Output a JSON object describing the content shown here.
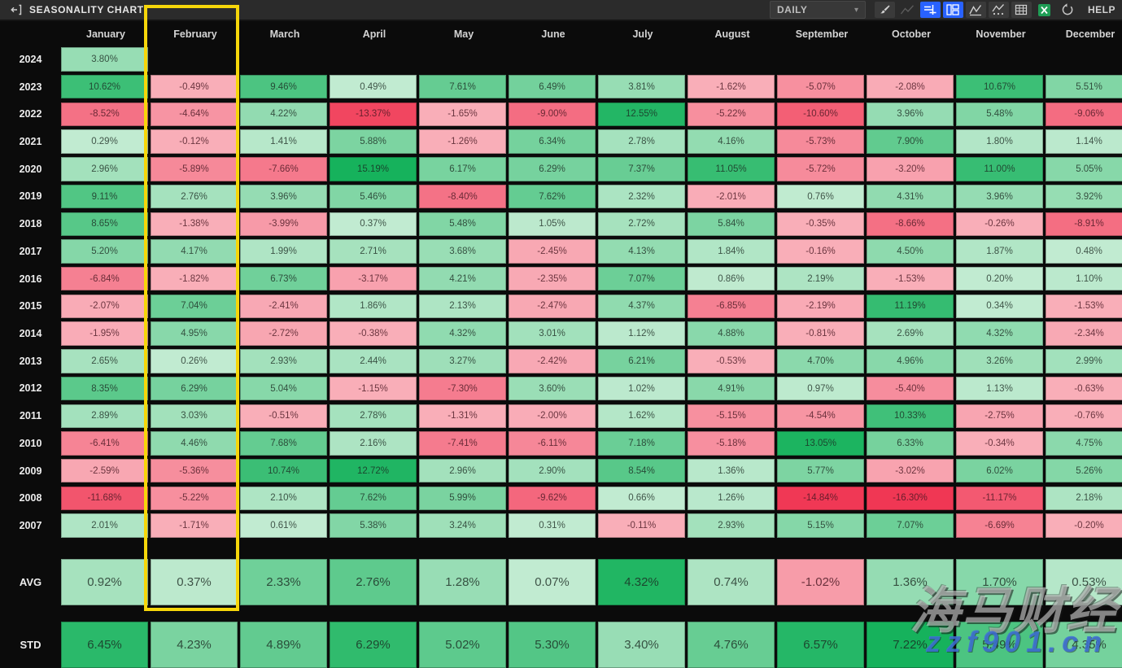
{
  "topbar": {
    "title": "SEASONALITY CHART",
    "timeframe_selected": "DAILY",
    "help_label": "HELP",
    "icons": [
      "collapse-panel",
      "chevron-down",
      "brush",
      "trend-line",
      "price-scale",
      "grid-layout",
      "line-chart",
      "performance-chart",
      "table",
      "excel-export",
      "reset"
    ]
  },
  "highlight": {
    "column": "February",
    "color": "#f6d60a"
  },
  "colors": {
    "green_low": "#caeed7",
    "green_high": "#16b25c",
    "red_low": "#fabec6",
    "red_high": "#f03754",
    "accent_blue": "#2962ff",
    "excel_green": "#1f9d55",
    "topbar_bg": "#2b2b2b",
    "page_bg": "#0b0b0b"
  },
  "watermark": {
    "line1": "海马财经",
    "line2": "zzf901.cn"
  },
  "chart_data": {
    "type": "heatmap",
    "title": "SEASONALITY CHART",
    "unit": "%",
    "columns": [
      "January",
      "February",
      "March",
      "April",
      "May",
      "June",
      "July",
      "August",
      "September",
      "October",
      "November",
      "December"
    ],
    "rows": [
      {
        "label": "2024",
        "values": [
          3.8,
          null,
          null,
          null,
          null,
          null,
          null,
          null,
          null,
          null,
          null,
          null
        ]
      },
      {
        "label": "2023",
        "values": [
          10.62,
          -0.49,
          9.46,
          0.49,
          7.61,
          6.49,
          3.81,
          -1.62,
          -5.07,
          -2.08,
          10.67,
          5.51
        ]
      },
      {
        "label": "2022",
        "values": [
          -8.52,
          -4.64,
          4.22,
          -13.37,
          -1.65,
          -9.0,
          12.55,
          -5.22,
          -10.6,
          3.96,
          5.48,
          -9.06
        ]
      },
      {
        "label": "2021",
        "values": [
          0.29,
          -0.12,
          1.41,
          5.88,
          -1.26,
          6.34,
          2.78,
          4.16,
          -5.73,
          7.9,
          1.8,
          1.14
        ]
      },
      {
        "label": "2020",
        "values": [
          2.96,
          -5.89,
          -7.66,
          15.19,
          6.17,
          6.29,
          7.37,
          11.05,
          -5.72,
          -3.2,
          11.0,
          5.05
        ]
      },
      {
        "label": "2019",
        "values": [
          9.11,
          2.76,
          3.96,
          5.46,
          -8.4,
          7.62,
          2.32,
          -2.01,
          0.76,
          4.31,
          3.96,
          3.92
        ]
      },
      {
        "label": "2018",
        "values": [
          8.65,
          -1.38,
          -3.99,
          0.37,
          5.48,
          1.05,
          2.72,
          5.84,
          -0.35,
          -8.66,
          -0.26,
          -8.91
        ]
      },
      {
        "label": "2017",
        "values": [
          5.2,
          4.17,
          1.99,
          2.71,
          3.68,
          -2.45,
          4.13,
          1.84,
          -0.16,
          4.5,
          1.87,
          0.48
        ]
      },
      {
        "label": "2016",
        "values": [
          -6.84,
          -1.82,
          6.73,
          -3.17,
          4.21,
          -2.35,
          7.07,
          0.86,
          2.19,
          -1.53,
          0.2,
          1.1
        ]
      },
      {
        "label": "2015",
        "values": [
          -2.07,
          7.04,
          -2.41,
          1.86,
          2.13,
          -2.47,
          4.37,
          -6.85,
          -2.19,
          11.19,
          0.34,
          -1.53
        ]
      },
      {
        "label": "2014",
        "values": [
          -1.95,
          4.95,
          -2.72,
          -0.38,
          4.32,
          3.01,
          1.12,
          4.88,
          -0.81,
          2.69,
          4.32,
          -2.34
        ]
      },
      {
        "label": "2013",
        "values": [
          2.65,
          0.26,
          2.93,
          2.44,
          3.27,
          -2.42,
          6.21,
          -0.53,
          4.7,
          4.96,
          3.26,
          2.99
        ]
      },
      {
        "label": "2012",
        "values": [
          8.35,
          6.29,
          5.04,
          -1.15,
          -7.3,
          3.6,
          1.02,
          4.91,
          0.97,
          -5.4,
          1.13,
          -0.63
        ]
      },
      {
        "label": "2011",
        "values": [
          2.89,
          3.03,
          -0.51,
          2.78,
          -1.31,
          -2.0,
          1.62,
          -5.15,
          -4.54,
          10.33,
          -2.75,
          -0.76
        ]
      },
      {
        "label": "2010",
        "values": [
          -6.41,
          4.46,
          7.68,
          2.16,
          -7.41,
          -6.11,
          7.18,
          -5.18,
          13.05,
          6.33,
          -0.34,
          4.75
        ]
      },
      {
        "label": "2009",
        "values": [
          -2.59,
          -5.36,
          10.74,
          12.72,
          2.96,
          2.9,
          8.54,
          1.36,
          5.77,
          -3.02,
          6.02,
          5.26
        ]
      },
      {
        "label": "2008",
        "values": [
          -11.68,
          -5.22,
          2.1,
          7.62,
          5.99,
          -9.62,
          0.66,
          1.26,
          -14.84,
          -16.3,
          -11.17,
          2.18
        ]
      },
      {
        "label": "2007",
        "values": [
          2.01,
          -1.71,
          0.61,
          5.38,
          3.24,
          0.31,
          -0.11,
          2.93,
          5.15,
          7.07,
          -6.69,
          -0.2
        ]
      }
    ],
    "summary_rows": [
      {
        "label": "AVG",
        "kind": "avg",
        "values": [
          0.92,
          0.37,
          2.33,
          2.76,
          1.28,
          0.07,
          4.32,
          0.74,
          -1.02,
          1.36,
          1.7,
          0.53
        ]
      },
      {
        "label": "STD",
        "kind": "std",
        "values": [
          6.45,
          4.23,
          4.89,
          6.29,
          5.02,
          5.3,
          3.4,
          4.76,
          6.57,
          7.22,
          5.49,
          4.35
        ]
      }
    ]
  }
}
